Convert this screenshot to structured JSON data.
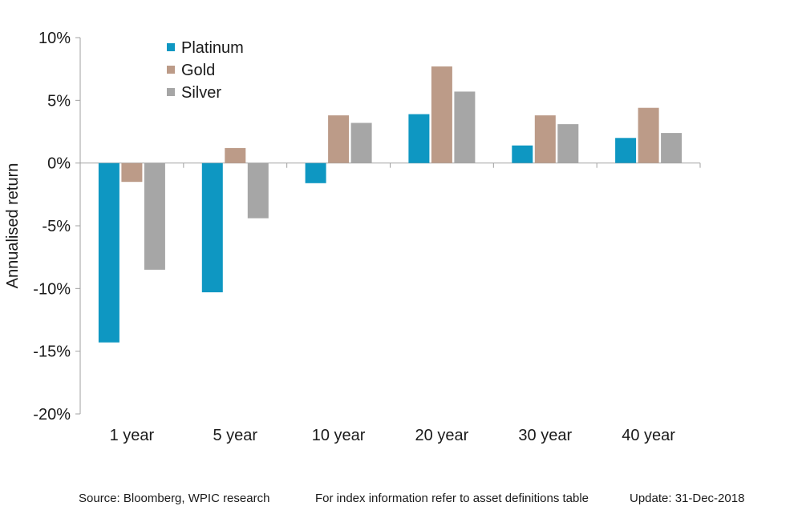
{
  "chart_data": {
    "type": "bar",
    "title": "",
    "xlabel": "",
    "ylabel": "Annualised return",
    "ylim": [
      -20,
      10
    ],
    "yticks": [
      10,
      5,
      0,
      -5,
      -10,
      -15,
      -20
    ],
    "ytick_labels": [
      "10%",
      "5%",
      "0%",
      "-5%",
      "-10%",
      "-15%",
      "-20%"
    ],
    "categories": [
      "1 year",
      "5 year",
      "10 year",
      "20 year",
      "30 year",
      "40 year"
    ],
    "series": [
      {
        "name": "Platinum",
        "color": "#0e97c2",
        "values": [
          -14.3,
          -10.3,
          -1.6,
          3.9,
          1.4,
          2.0
        ]
      },
      {
        "name": "Gold",
        "color": "#bc9b88",
        "values": [
          -1.5,
          1.2,
          3.8,
          7.7,
          3.8,
          4.4
        ]
      },
      {
        "name": "Silver",
        "color": "#a6a6a6",
        "values": [
          -8.5,
          -4.4,
          3.2,
          5.7,
          3.1,
          2.4
        ]
      }
    ],
    "grid": false,
    "legend_position": "top-left"
  },
  "footer": {
    "source": "Source: Bloomberg, WPIC research",
    "index_note": "For index information refer to asset definitions table",
    "update": "Update: 31-Dec-2018"
  }
}
